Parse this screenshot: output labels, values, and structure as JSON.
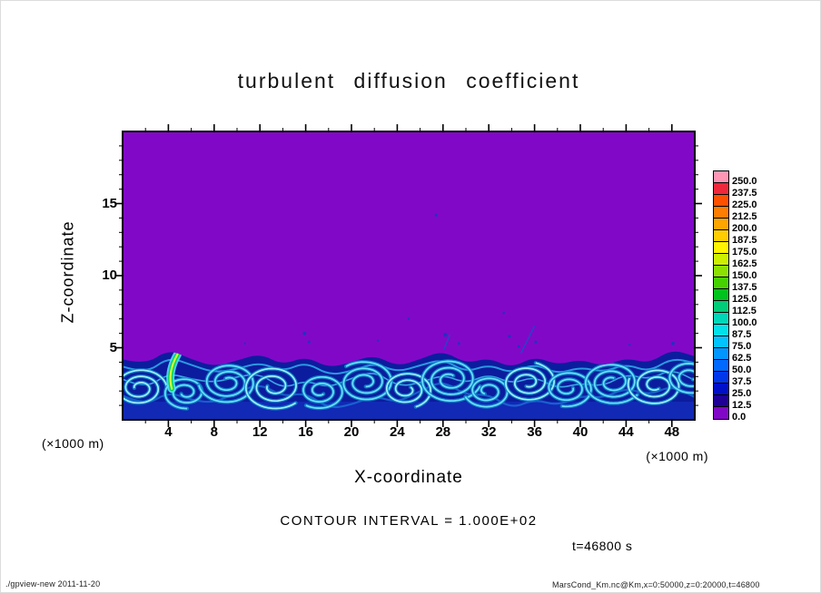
{
  "title": "turbulent diffusion coefficient",
  "axes": {
    "x_label": "X-coordinate",
    "y_label": "Z-coordinate",
    "unit_left": "(×1000 m)",
    "unit_right": "(×1000 m)"
  },
  "annotations": {
    "contour_interval": "CONTOUR INTERVAL = 1.000E+02",
    "time_stamp": "t=46800 s"
  },
  "footer": {
    "left": "./gpview-new  2011-11-20",
    "right": "MarsCond_Km.nc@Km,x=0:50000,z=0:20000,t=46800"
  },
  "chart_data": {
    "type": "heatmap",
    "title": "turbulent diffusion coefficient",
    "xlabel": "X-coordinate (×1000 m)",
    "ylabel": "Z-coordinate (×1000 m)",
    "x_range": [
      0,
      50
    ],
    "z_range": [
      0,
      20
    ],
    "x_ticks": [
      4,
      8,
      12,
      16,
      20,
      24,
      28,
      32,
      36,
      40,
      44,
      48
    ],
    "y_ticks": [
      5,
      10,
      15
    ],
    "x_minor_step": 2,
    "y_minor_step": 1,
    "contour_interval": "1.000E+02",
    "time_s": 46800,
    "colorbar": {
      "levels": [
        "250.0",
        "237.5",
        "225.0",
        "212.5",
        "200.0",
        "187.5",
        "175.0",
        "162.5",
        "150.0",
        "137.5",
        "125.0",
        "112.5",
        "100.0",
        "87.5",
        "75.0",
        "62.5",
        "50.0",
        "37.5",
        "25.0",
        "12.5",
        "0.0"
      ],
      "colors": [
        "#ff96b4",
        "#f0283c",
        "#ff5000",
        "#ff7d00",
        "#ffa500",
        "#ffcd00",
        "#fff500",
        "#cdf000",
        "#8ce100",
        "#46d200",
        "#00c31e",
        "#00cd78",
        "#00d7b9",
        "#00e1eb",
        "#00c3ff",
        "#0096ff",
        "#0069ff",
        "#0037eb",
        "#000fc8",
        "#1e0096",
        "#8208c8"
      ]
    },
    "field": {
      "background_color": "#8208c8",
      "layer_base_color": "#0c1c9e",
      "boundary": [
        [
          0,
          4.2
        ],
        [
          2,
          3.8
        ],
        [
          4,
          4.9
        ],
        [
          6,
          4.2
        ],
        [
          8,
          3.7
        ],
        [
          10,
          4.1
        ],
        [
          12,
          4.6
        ],
        [
          14,
          3.8
        ],
        [
          16,
          4.4
        ],
        [
          18,
          3.6
        ],
        [
          20,
          4.0
        ],
        [
          22,
          4.5
        ],
        [
          24,
          3.7
        ],
        [
          26,
          4.2
        ],
        [
          28,
          4.8
        ],
        [
          30,
          3.9
        ],
        [
          32,
          4.3
        ],
        [
          34,
          3.6
        ],
        [
          36,
          4.4
        ],
        [
          38,
          3.8
        ],
        [
          40,
          4.2
        ],
        [
          42,
          3.7
        ],
        [
          44,
          4.3
        ],
        [
          46,
          3.9
        ],
        [
          48,
          4.9
        ],
        [
          50,
          4.4
        ]
      ],
      "vortices": [
        [
          1.5,
          2.2,
          2.3,
          2.5,
          0
        ],
        [
          5.5,
          1.9,
          1.9,
          2.2,
          1.5
        ],
        [
          9.2,
          2.6,
          2.5,
          2.8,
          3.0
        ],
        [
          13.2,
          2.3,
          2.7,
          2.4,
          0.8
        ],
        [
          17.3,
          2.0,
          2.1,
          2.2,
          2.2
        ],
        [
          21.2,
          2.6,
          2.5,
          2.6,
          4.0
        ],
        [
          24.8,
          2.1,
          2.2,
          2.3,
          1.2
        ],
        [
          28.6,
          2.8,
          2.7,
          2.8,
          0.3
        ],
        [
          31.9,
          2.0,
          2.0,
          2.1,
          2.8
        ],
        [
          35.4,
          2.6,
          2.4,
          2.5,
          5.0
        ],
        [
          38.9,
          2.2,
          2.2,
          2.3,
          1.8
        ],
        [
          42.8,
          2.6,
          2.6,
          2.7,
          0.6
        ],
        [
          46.6,
          2.4,
          2.4,
          2.4,
          3.5
        ],
        [
          49.6,
          3.0,
          2.0,
          2.0,
          1.0
        ]
      ],
      "specks": [
        [
          10.7,
          5.3,
          1.2
        ],
        [
          15.9,
          6.0,
          2.0
        ],
        [
          16.3,
          5.4,
          1.5
        ],
        [
          22.3,
          5.5,
          1.2
        ],
        [
          25.0,
          7.0,
          1.2
        ],
        [
          27.4,
          14.2,
          1.6
        ],
        [
          28.2,
          5.9,
          2.2
        ],
        [
          29.4,
          5.3,
          1.5
        ],
        [
          33.3,
          7.4,
          1.3
        ],
        [
          33.8,
          5.8,
          1.6
        ],
        [
          34.6,
          5.1,
          1.3
        ],
        [
          36.1,
          5.4,
          1.6
        ],
        [
          44.3,
          5.2,
          1.3
        ],
        [
          48.1,
          5.3,
          1.8
        ]
      ],
      "streaks": [
        [
          34.8,
          4.6,
          36.0,
          6.5
        ],
        [
          28.1,
          4.9,
          28.6,
          5.9
        ]
      ],
      "bright_feature": {
        "path": [
          [
            4.3,
            2.15
          ],
          [
            3.9,
            3.3
          ],
          [
            4.8,
            4.55
          ]
        ],
        "colors": [
          "#55e0ff",
          "#00d750",
          "#d8ff3c"
        ],
        "widths": [
          9,
          5,
          2.2
        ],
        "peak_value_estimate": 175
      },
      "description": "Convectively turbulent boundary layer below z ≈ 4–5 (×1000 m) with cyan/blue vortex swirls (values ~12.5–100, locally ~150–200 in one plume near x ≈ 4.5); uniform minimum band (0–12.5, purple) everywhere above."
    }
  }
}
